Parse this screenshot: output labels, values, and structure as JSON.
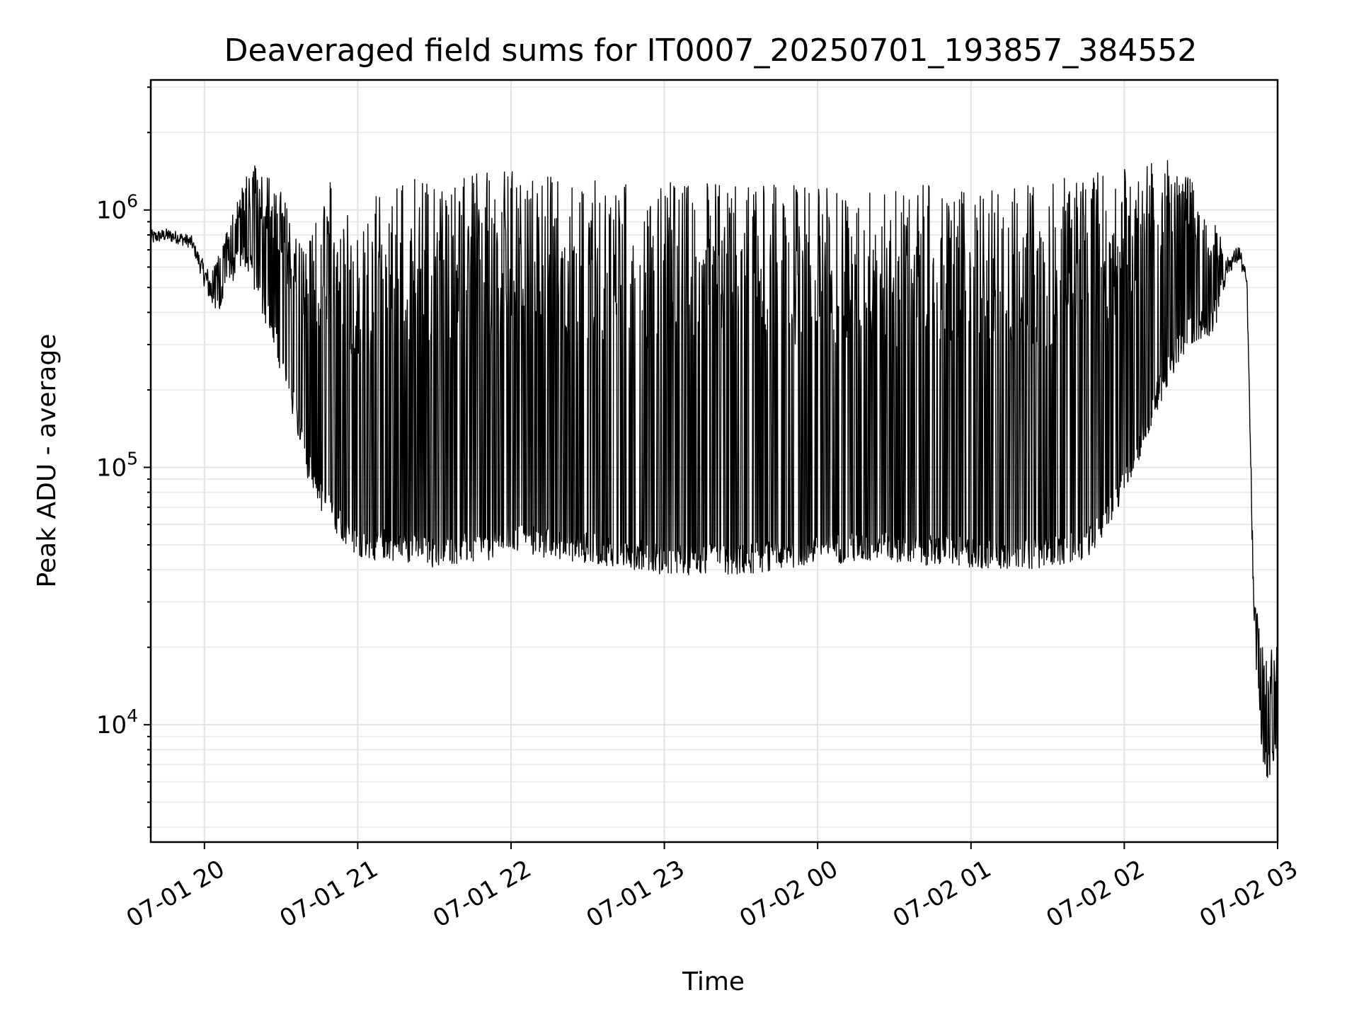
{
  "chart_data": {
    "type": "line",
    "title": "Deaveraged field sums for IT0007_20250701_193857_384552",
    "xlabel": "Time",
    "ylabel": "Peak ADU - average",
    "x_axis": "datetime",
    "xlim": [
      "2025-07-01T19:39:00",
      "2025-07-02T03:00:00"
    ],
    "xtick_labels": [
      "07-01 20",
      "07-01 21",
      "07-01 22",
      "07-01 23",
      "07-02 00",
      "07-02 01",
      "07-02 02",
      "07-02 03"
    ],
    "xtick_values": [
      "2025-07-01T20:00:00",
      "2025-07-01T21:00:00",
      "2025-07-01T22:00:00",
      "2025-07-01T23:00:00",
      "2025-07-02T00:00:00",
      "2025-07-02T01:00:00",
      "2025-07-02T02:00:00",
      "2025-07-02T03:00:00"
    ],
    "yscale": "log",
    "ylim": [
      3500,
      3200000
    ],
    "ytick_labels": [
      {
        "base": "10",
        "exp": "4"
      },
      {
        "base": "10",
        "exp": "5"
      },
      {
        "base": "10",
        "exp": "6"
      }
    ],
    "ytick_values": [
      10000,
      100000,
      1000000
    ],
    "grid": true,
    "line_color": "#000000",
    "series": [
      {
        "x": [
          "2025-07-01T19:39:00",
          "2025-07-01T19:45:00",
          "2025-07-01T19:50:00",
          "2025-07-01T19:55:00",
          "2025-07-01T20:00:00",
          "2025-07-01T20:05:00",
          "2025-07-01T20:10:00",
          "2025-07-01T20:15:00",
          "2025-07-01T20:20:00",
          "2025-07-01T20:25:00",
          "2025-07-01T20:30:00",
          "2025-07-01T20:35:00",
          "2025-07-01T20:40:00",
          "2025-07-01T20:45:00",
          "2025-07-01T20:50:00",
          "2025-07-01T20:55:00",
          "2025-07-01T21:00:00",
          "2025-07-01T21:10:00",
          "2025-07-01T21:20:00",
          "2025-07-01T21:30:00",
          "2025-07-01T21:40:00",
          "2025-07-01T21:50:00",
          "2025-07-01T22:00:00",
          "2025-07-01T22:15:00",
          "2025-07-01T22:30:00",
          "2025-07-01T22:45:00",
          "2025-07-01T23:00:00",
          "2025-07-01T23:15:00",
          "2025-07-01T23:30:00",
          "2025-07-01T23:45:00",
          "2025-07-02T00:00:00",
          "2025-07-02T00:15:00",
          "2025-07-02T00:30:00",
          "2025-07-02T00:45:00",
          "2025-07-02T01:00:00",
          "2025-07-02T01:15:00",
          "2025-07-02T01:30:00",
          "2025-07-02T01:45:00",
          "2025-07-02T01:55:00",
          "2025-07-02T02:05:00",
          "2025-07-02T02:15:00",
          "2025-07-02T02:25:00",
          "2025-07-02T02:35:00",
          "2025-07-02T02:40:00",
          "2025-07-02T02:45:00",
          "2025-07-02T02:48:00",
          "2025-07-02T02:51:00",
          "2025-07-02T02:55:00",
          "2025-07-02T03:00:00"
        ],
        "y": [
          780000,
          800000,
          780000,
          750000,
          560000,
          430000,
          600000,
          700000,
          550000,
          400000,
          260000,
          180000,
          110000,
          80000,
          68000,
          60000,
          50000,
          52000,
          50000,
          48000,
          50000,
          50000,
          55000,
          52000,
          50000,
          48000,
          45000,
          45000,
          45000,
          47000,
          50000,
          50000,
          50000,
          49000,
          48000,
          47000,
          48000,
          52000,
          70000,
          120000,
          220000,
          350000,
          390000,
          600000,
          680000,
          520000,
          20000,
          7000,
          8500
        ],
        "upper": [
          900000,
          850000,
          820000,
          800000,
          700000,
          650000,
          900000,
          1300000,
          1500000,
          1400000,
          1200000,
          900000,
          700000,
          1000000,
          1400000,
          1300000,
          800000,
          1300000,
          1400000,
          1300000,
          1350000,
          1400000,
          1450000,
          1400000,
          1350000,
          1300000,
          1300000,
          1300000,
          1300000,
          1300000,
          1250000,
          1250000,
          1250000,
          1250000,
          1200000,
          1250000,
          1300000,
          1400000,
          1500000,
          1550000,
          1600000,
          1400000,
          900000,
          700000,
          800000,
          600000,
          30000,
          20000,
          20000
        ]
      }
    ]
  }
}
